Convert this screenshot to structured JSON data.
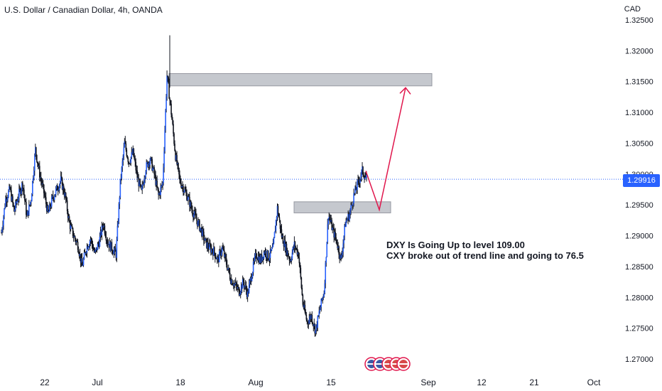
{
  "header": {
    "symbol_title": "U.S. Dollar / Canadian Dollar, 4h, OANDA",
    "currency": "CAD"
  },
  "colors": {
    "candle": "#2962ff",
    "wick": "#131722",
    "zone": "#b2b5be",
    "arrow": "#e0164c",
    "price_line": "#2962ff"
  },
  "annotations": {
    "line1": "DXY Is Going Up to level 109.00",
    "line2": "CXY broke out of trend line  and going to 76.5"
  },
  "current_price": {
    "label": "1.29916",
    "value": 1.29916
  },
  "chart_data": {
    "type": "line",
    "ylim": [
      1.27,
      1.325
    ],
    "y_ticks": [
      "1.32500",
      "1.32000",
      "1.31500",
      "1.31000",
      "1.30500",
      "1.30000",
      "1.29500",
      "1.29000",
      "1.28500",
      "1.28000",
      "1.27500",
      "1.27000"
    ],
    "x_ticks": [
      "22",
      "Jul",
      "18",
      "Aug",
      "15",
      "Sep",
      "12",
      "21",
      "Oct"
    ],
    "series": [
      {
        "values": [
          1.2905,
          1.296,
          1.2975,
          1.294,
          1.2965,
          1.2985,
          1.293,
          1.296,
          1.304,
          1.3,
          1.297,
          1.2935,
          1.296,
          1.2975,
          1.299,
          1.2965,
          1.292,
          1.29,
          1.2885,
          1.285,
          1.288,
          1.2895,
          1.287,
          1.289,
          1.292,
          1.289,
          1.288,
          1.287,
          1.2985,
          1.305,
          1.302,
          1.3035,
          1.2995,
          1.297,
          1.301,
          1.3025,
          1.3,
          1.2965,
          1.2985,
          1.316,
          1.31,
          1.303,
          1.299,
          1.2975,
          1.296,
          1.294,
          1.2925,
          1.291,
          1.289,
          1.288,
          1.2875,
          1.286,
          1.288,
          1.2855,
          1.283,
          1.282,
          1.281,
          1.2825,
          1.2805,
          1.284,
          1.287,
          1.286,
          1.2875,
          1.2865,
          1.288,
          1.2945,
          1.29,
          1.288,
          1.286,
          1.2885,
          1.287,
          1.279,
          1.276,
          1.277,
          1.2745,
          1.278,
          1.281,
          1.2935,
          1.291,
          1.289,
          1.286,
          1.292,
          1.2935,
          1.2965,
          1.2985,
          1.3005,
          1.2992
        ]
      }
    ],
    "zones": [
      {
        "y_low": 1.3143,
        "y_high": 1.3163
      },
      {
        "y_low": 1.2937,
        "y_high": 1.2955
      }
    ],
    "projection": [
      1.3005,
      1.2942,
      1.314
    ]
  }
}
